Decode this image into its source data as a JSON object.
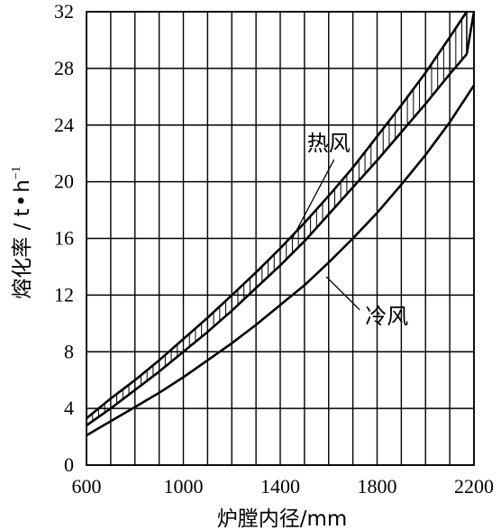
{
  "chart_data": {
    "type": "line",
    "title": "",
    "xlabel": "炉膛内径/mm",
    "ylabel_main": "熔化率 / t",
    "ylabel_dot": "•",
    "ylabel_h": "h",
    "ylabel_sup": "−1",
    "xlim": [
      600,
      2200
    ],
    "ylim": [
      0,
      32
    ],
    "xticks": [
      "600",
      "1000",
      "1400",
      "1800",
      "2200"
    ],
    "yticks": [
      "0",
      "4",
      "8",
      "12",
      "16",
      "20",
      "24",
      "28",
      "32"
    ],
    "grid": true,
    "series": [
      {
        "name": "热风",
        "x": [
          600,
          700,
          800,
          900,
          1000,
          1100,
          1200,
          1300,
          1400,
          1500,
          1600,
          1700,
          1800,
          1900,
          2000,
          2100,
          2170
        ],
        "upper": [
          3.3,
          4.7,
          6.0,
          7.4,
          8.9,
          10.4,
          12.0,
          13.6,
          15.3,
          17.1,
          19.0,
          21.0,
          23.2,
          25.4,
          27.7,
          30.2,
          32.0
        ],
        "lower": [
          2.8,
          4.0,
          5.3,
          6.6,
          8.0,
          9.4,
          10.9,
          12.5,
          14.1,
          15.8,
          17.7,
          19.6,
          21.5,
          23.5,
          25.5,
          27.6,
          29.0
        ],
        "extra_x": [
          2170,
          2200
        ],
        "extra_y": [
          29.0,
          32.0
        ]
      },
      {
        "name": "冷风",
        "x": [
          600,
          700,
          800,
          900,
          1000,
          1100,
          1200,
          1300,
          1400,
          1500,
          1600,
          1700,
          1800,
          1900,
          2000,
          2100,
          2200
        ],
        "values": [
          2.1,
          3.1,
          4.1,
          5.1,
          6.2,
          7.4,
          8.6,
          9.9,
          11.3,
          12.7,
          14.3,
          16.0,
          17.8,
          19.8,
          21.9,
          24.2,
          26.8
        ]
      }
    ],
    "annotations": [
      {
        "text": "热风",
        "x": 1600,
        "y": 22.2,
        "arrow_to": [
          1450,
          16.0
        ]
      },
      {
        "text": "冷风",
        "x": 1840,
        "y": 10.0,
        "arrow_to": [
          1590,
          13.3
        ]
      }
    ]
  }
}
